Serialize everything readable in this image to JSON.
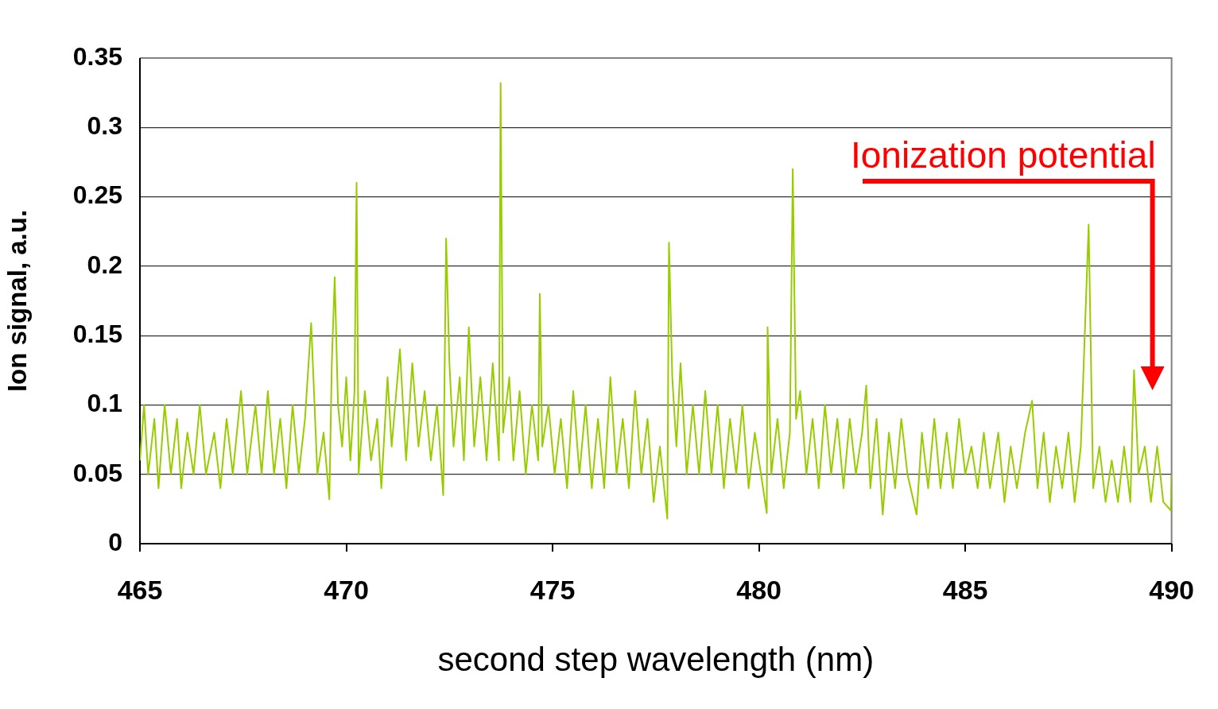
{
  "chart_data": {
    "type": "line",
    "xlabel": "second step wavelength (nm)",
    "ylabel": "Ion signal, a.u.",
    "xlim": [
      465,
      490
    ],
    "xticks": [
      465,
      470,
      475,
      480,
      485,
      490
    ],
    "ylim": [
      0,
      0.35
    ],
    "yticks": [
      0,
      0.05,
      0.1,
      0.15,
      0.2,
      0.25,
      0.3,
      0.35
    ],
    "grid": "y",
    "legend": false,
    "marker": "none",
    "color": "#99cc00",
    "annotations": [
      "Ionization potential"
    ],
    "x": [
      465.0,
      465.1,
      465.2,
      465.35,
      465.45,
      465.6,
      465.75,
      465.9,
      466.0,
      466.15,
      466.3,
      466.45,
      466.6,
      466.8,
      466.95,
      467.1,
      467.25,
      467.45,
      467.6,
      467.8,
      467.95,
      468.1,
      468.25,
      468.4,
      468.55,
      468.7,
      468.85,
      469.0,
      469.15,
      469.3,
      469.45,
      469.59,
      469.65,
      469.72,
      469.8,
      469.9,
      470.0,
      470.1,
      470.2,
      470.25,
      470.3,
      470.45,
      470.6,
      470.75,
      470.85,
      471.0,
      471.1,
      471.3,
      471.45,
      471.6,
      471.75,
      471.9,
      472.05,
      472.2,
      472.35,
      472.42,
      472.5,
      472.6,
      472.75,
      472.85,
      472.97,
      473.1,
      473.25,
      473.4,
      473.55,
      473.7,
      473.74,
      473.8,
      473.95,
      474.05,
      474.2,
      474.35,
      474.5,
      474.65,
      474.69,
      474.75,
      474.9,
      475.05,
      475.2,
      475.35,
      475.5,
      475.65,
      475.8,
      475.95,
      476.1,
      476.25,
      476.4,
      476.55,
      476.7,
      476.85,
      477.0,
      477.15,
      477.3,
      477.45,
      477.6,
      477.78,
      477.82,
      477.9,
      478.0,
      478.1,
      478.25,
      478.4,
      478.55,
      478.7,
      478.85,
      479.0,
      479.15,
      479.3,
      479.45,
      479.6,
      479.75,
      479.9,
      480.05,
      480.19,
      480.21,
      480.3,
      480.45,
      480.6,
      480.75,
      480.82,
      480.9,
      481.0,
      481.15,
      481.3,
      481.45,
      481.6,
      481.75,
      481.9,
      482.05,
      482.2,
      482.35,
      482.5,
      482.6,
      482.7,
      482.85,
      483.0,
      483.15,
      483.3,
      483.45,
      483.6,
      483.82,
      483.95,
      484.1,
      484.25,
      484.4,
      484.55,
      484.7,
      484.85,
      485.0,
      485.15,
      485.3,
      485.45,
      485.6,
      485.8,
      485.95,
      486.1,
      486.25,
      486.45,
      486.62,
      486.75,
      486.9,
      487.05,
      487.2,
      487.35,
      487.5,
      487.65,
      487.8,
      487.99,
      488.1,
      488.25,
      488.4,
      488.55,
      488.7,
      488.85,
      489.0,
      489.09,
      489.2,
      489.35,
      489.5,
      489.65,
      489.8,
      489.98,
      490.0
    ],
    "values": [
      0.06,
      0.1,
      0.05,
      0.09,
      0.04,
      0.1,
      0.05,
      0.09,
      0.04,
      0.08,
      0.05,
      0.1,
      0.05,
      0.08,
      0.04,
      0.09,
      0.05,
      0.11,
      0.05,
      0.1,
      0.05,
      0.11,
      0.05,
      0.09,
      0.04,
      0.1,
      0.05,
      0.09,
      0.159,
      0.05,
      0.08,
      0.032,
      0.13,
      0.192,
      0.1,
      0.07,
      0.12,
      0.06,
      0.11,
      0.26,
      0.05,
      0.11,
      0.06,
      0.09,
      0.04,
      0.12,
      0.07,
      0.14,
      0.06,
      0.13,
      0.07,
      0.11,
      0.06,
      0.1,
      0.035,
      0.22,
      0.13,
      0.07,
      0.12,
      0.06,
      0.156,
      0.07,
      0.12,
      0.06,
      0.13,
      0.06,
      0.332,
      0.08,
      0.12,
      0.06,
      0.11,
      0.05,
      0.1,
      0.06,
      0.18,
      0.07,
      0.1,
      0.05,
      0.09,
      0.04,
      0.11,
      0.05,
      0.1,
      0.04,
      0.09,
      0.04,
      0.12,
      0.05,
      0.09,
      0.04,
      0.11,
      0.05,
      0.09,
      0.03,
      0.07,
      0.018,
      0.217,
      0.12,
      0.07,
      0.13,
      0.05,
      0.1,
      0.05,
      0.11,
      0.05,
      0.1,
      0.04,
      0.09,
      0.05,
      0.1,
      0.04,
      0.08,
      0.05,
      0.022,
      0.156,
      0.05,
      0.09,
      0.04,
      0.08,
      0.27,
      0.09,
      0.11,
      0.05,
      0.09,
      0.04,
      0.1,
      0.05,
      0.09,
      0.04,
      0.09,
      0.05,
      0.08,
      0.114,
      0.04,
      0.09,
      0.021,
      0.08,
      0.04,
      0.09,
      0.05,
      0.021,
      0.08,
      0.04,
      0.09,
      0.04,
      0.08,
      0.04,
      0.09,
      0.05,
      0.07,
      0.04,
      0.08,
      0.04,
      0.08,
      0.03,
      0.07,
      0.04,
      0.08,
      0.103,
      0.04,
      0.08,
      0.03,
      0.07,
      0.04,
      0.08,
      0.03,
      0.07,
      0.23,
      0.04,
      0.07,
      0.03,
      0.06,
      0.03,
      0.07,
      0.03,
      0.125,
      0.05,
      0.07,
      0.03,
      0.07,
      0.03,
      0.024,
      0.05
    ]
  }
}
